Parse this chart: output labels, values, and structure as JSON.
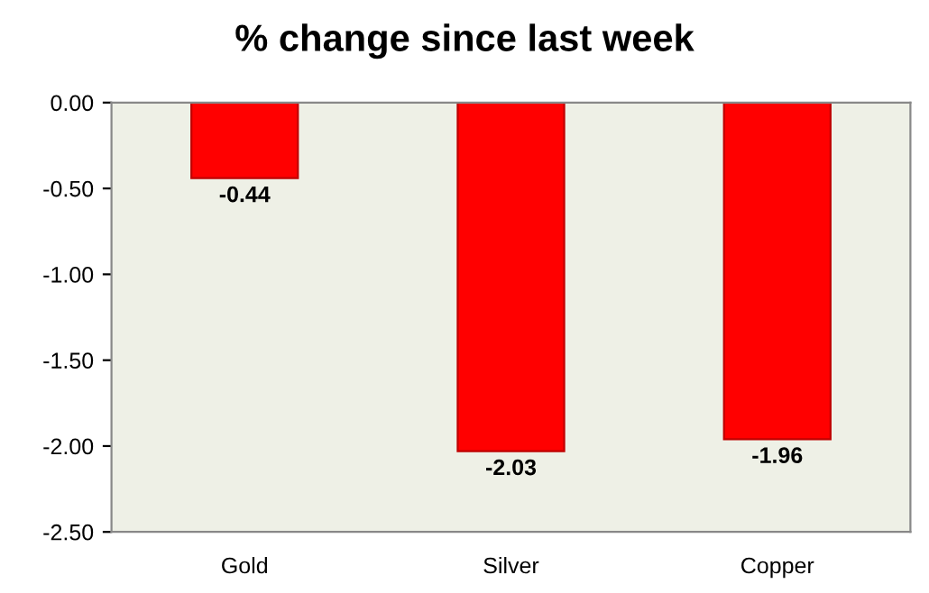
{
  "chart_data": {
    "type": "bar",
    "title": "% change since last week",
    "categories": [
      "Gold",
      "Silver",
      "Copper"
    ],
    "values": [
      -0.44,
      -2.03,
      -1.96
    ],
    "color": "#ff0000",
    "ylim": [
      -2.5,
      0
    ],
    "yticks": [
      {
        "value": -2.5,
        "label": "-2.50"
      },
      {
        "value": -2.0,
        "label": "-2.00"
      },
      {
        "value": -1.5,
        "label": "-1.50"
      },
      {
        "value": -1.0,
        "label": "-1.00"
      },
      {
        "value": -0.5,
        "label": "-0.50"
      },
      {
        "value": 0,
        "label": "0.00"
      }
    ],
    "data_labels": true,
    "grid": false
  }
}
